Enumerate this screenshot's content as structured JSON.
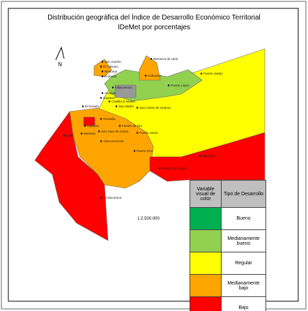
{
  "title": [
    "Distribución geográfica del Índice de Desarrollo Económico Territorial",
    "IDeMet por porcentajes"
  ],
  "north": "N",
  "scale": "1:2.500.000",
  "legend": {
    "headers": [
      "Variable visual de color",
      "Tipo de Desarrollo"
    ],
    "items": [
      {
        "label": "Bueno",
        "color": "#00b050"
      },
      {
        "label": "Medianamente bueno",
        "color": "#92d050"
      },
      {
        "label": "Regular",
        "color": "#ffff00"
      },
      {
        "label": "Medianamente bajo",
        "color": "#ffa500"
      },
      {
        "label": "Bajo",
        "color": "#ff0000"
      }
    ]
  },
  "places": [
    "San Juanito",
    "El Calvario",
    "Restrepo",
    "Cumaral",
    "Barranca de Upía",
    "Cabuyaro",
    "Puerto Gaitán",
    "Puerto López",
    "Villavicencio",
    "Acacías",
    "Guamal",
    "Castilla la Nueva",
    "San Martín",
    "San Carlos de Guaroa",
    "El Dorado",
    "Granada",
    "Lejanías",
    "Fuente de Oro",
    "San Juan de Arama",
    "Puerto Lleras",
    "Mesetas",
    "Uribe",
    "Vista Hermosa",
    "Puerto Rico",
    "Puerto Concordia",
    "Mapiripán",
    "La Macarena"
  ]
}
